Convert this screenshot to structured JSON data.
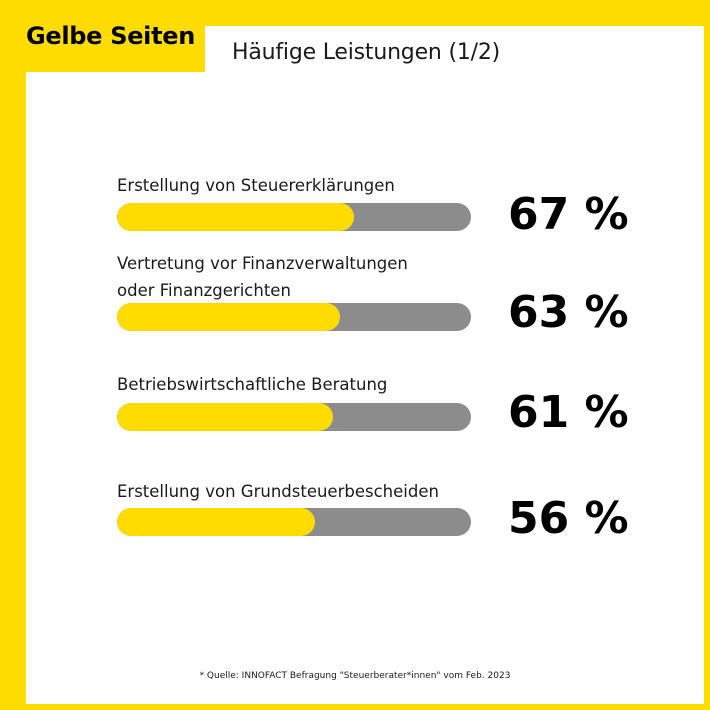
{
  "brand": {
    "logo_text": "Gelbe Seiten",
    "color": "#ffdc00"
  },
  "chart_data": {
    "type": "bar",
    "orientation": "horizontal",
    "title": "Häufige Leistungen (1/2)",
    "categories": [
      "Erstellung von Steuererklärungen",
      "Vertretung vor Finanzverwaltungen oder Finanzgerichten",
      "Betriebswirtschaftliche Beratung",
      "Erstellung von Grundsteuerbescheiden"
    ],
    "values": [
      67,
      63,
      61,
      56
    ],
    "value_labels": [
      "67 %",
      "63 %",
      "61 %",
      "56 %"
    ],
    "xlim": [
      0,
      100
    ],
    "fill_color": "#ffdc00",
    "track_color": "#8c8c8c",
    "grid": false,
    "legend": "none"
  },
  "footnote": "* Quelle: INNOFACT Befragung \"Steuerberater*innen\" vom Feb. 2023"
}
